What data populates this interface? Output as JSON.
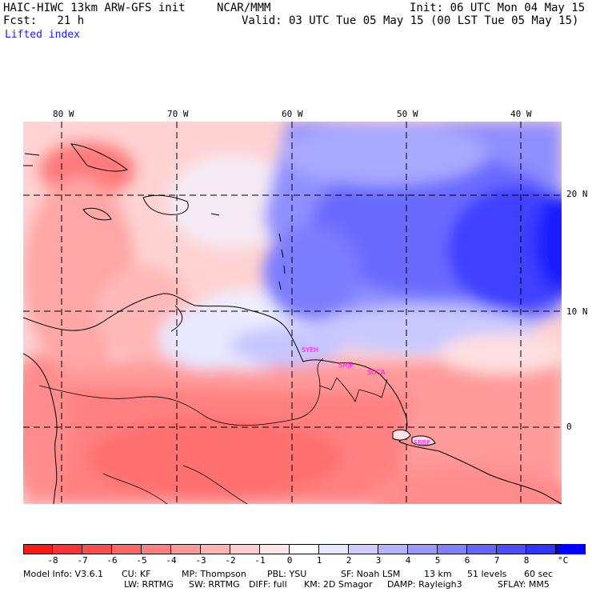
{
  "header": {
    "title_left": "HAIC-HIWC 13km ARW-GFS init",
    "title_center": "NCAR/MMM",
    "init": "Init: 06 UTC Mon 04 May 15",
    "fcst": "Fcst:   21 h",
    "valid": "Valid: 03 UTC Tue 05 May 15 (00 LST Tue 05 May 15)",
    "field": "Lifted index"
  },
  "map": {
    "lon_labels": [
      "80 W",
      "70 W",
      "60 W",
      "50 W",
      "40 W"
    ],
    "lat_labels": [
      "20 N",
      "10 N",
      "0"
    ],
    "stations": [
      "SBBE",
      "SOCA",
      "SMJP",
      "SYEH"
    ],
    "station_color": "#ff00ff"
  },
  "colorbar": {
    "colors": [
      "#ff1a1a",
      "#ff3333",
      "#ff4d4d",
      "#ff6666",
      "#ff7f7f",
      "#ff9999",
      "#ffb3b3",
      "#ffcccc",
      "#ffe6e6",
      "#ffffff",
      "#e6e6ff",
      "#ccccff",
      "#b3b3ff",
      "#9999ff",
      "#7f7fff",
      "#6666ff",
      "#4d4dff",
      "#3333ff",
      "#0000ff"
    ],
    "ticks": [
      "-8",
      "-7",
      "-6",
      "-5",
      "-4",
      "-3",
      "-2",
      "-1",
      "0",
      "1",
      "2",
      "3",
      "4",
      "5",
      "6",
      "7",
      "8"
    ],
    "unit": "°C"
  },
  "footer": {
    "line1": [
      "Model Info: V3.6.1",
      "CU: KF",
      "MP: Thompson",
      "PBL: YSU",
      "SF: Noah LSM",
      "13 km",
      "51 levels",
      "60 sec"
    ],
    "line2": [
      "LW: RRTMG",
      "SW: RRTMG",
      "DIFF: full",
      "KM: 2D Smagor",
      "DAMP: Rayleigh3",
      "SFLAY: MM5"
    ]
  }
}
